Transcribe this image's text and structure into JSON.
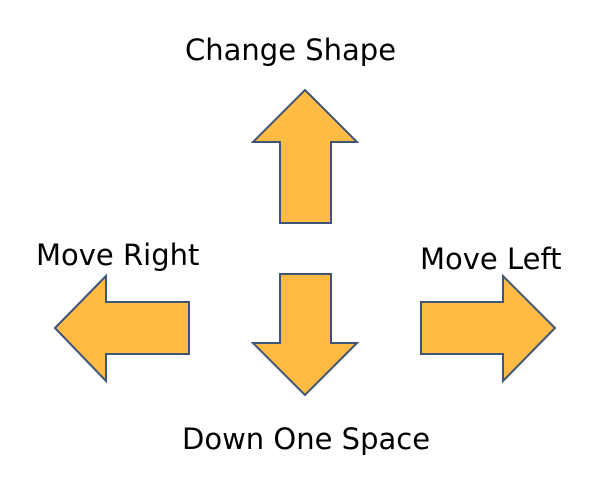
{
  "labels": {
    "up": "Change Shape",
    "left_side": "Move Right",
    "right_side": "Move Left",
    "down": "Down One Space"
  },
  "style": {
    "arrow_fill": "#FFBB44",
    "arrow_stroke": "#3F5578"
  },
  "arrows": [
    {
      "name": "up-arrow-icon",
      "direction": "up"
    },
    {
      "name": "down-arrow-icon",
      "direction": "down"
    },
    {
      "name": "left-arrow-icon",
      "direction": "left"
    },
    {
      "name": "right-arrow-icon",
      "direction": "right"
    }
  ]
}
